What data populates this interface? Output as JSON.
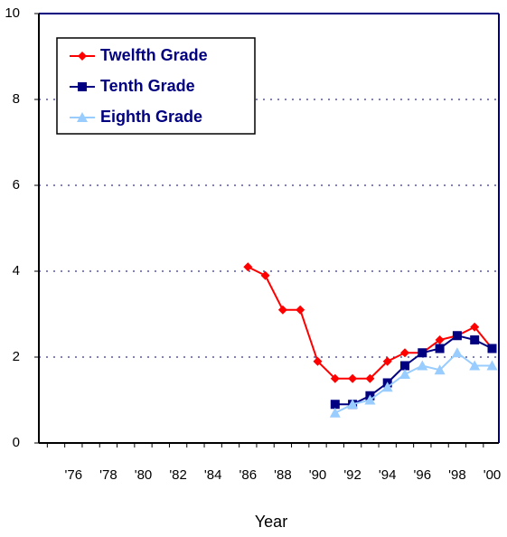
{
  "chart_data": {
    "type": "line",
    "x_label": "Year",
    "categories": [
      null,
      "'76",
      null,
      "'78",
      null,
      "'80",
      null,
      "'82",
      null,
      "'84",
      null,
      "'86",
      null,
      "'88",
      null,
      "'90",
      null,
      "'92",
      null,
      "'94",
      null,
      "'96",
      null,
      "'98",
      null,
      "'00"
    ],
    "series": [
      {
        "name": "Twelfth Grade",
        "color": "#ff0000",
        "marker": "diamond",
        "values": [
          null,
          null,
          null,
          null,
          null,
          null,
          null,
          null,
          null,
          null,
          null,
          4.1,
          3.9,
          3.1,
          3.1,
          1.9,
          1.5,
          1.5,
          1.5,
          1.9,
          2.1,
          2.1,
          2.4,
          2.5,
          2.7,
          2.2
        ]
      },
      {
        "name": "Tenth Grade",
        "color": "#000080",
        "marker": "square",
        "values": [
          null,
          null,
          null,
          null,
          null,
          null,
          null,
          null,
          null,
          null,
          null,
          null,
          null,
          null,
          null,
          null,
          0.9,
          0.9,
          1.1,
          1.4,
          1.8,
          2.1,
          2.2,
          2.5,
          2.4,
          2.2
        ]
      },
      {
        "name": "Eighth Grade",
        "color": "#99ccff",
        "marker": "triangle",
        "values": [
          null,
          null,
          null,
          null,
          null,
          null,
          null,
          null,
          null,
          null,
          null,
          null,
          null,
          null,
          null,
          null,
          0.7,
          0.9,
          1.0,
          1.3,
          1.6,
          1.8,
          1.7,
          2.1,
          1.8,
          1.8
        ]
      }
    ],
    "ylim": [
      0,
      10
    ],
    "yticks": [
      0,
      2,
      4,
      6,
      8,
      10
    ],
    "grid": true
  }
}
